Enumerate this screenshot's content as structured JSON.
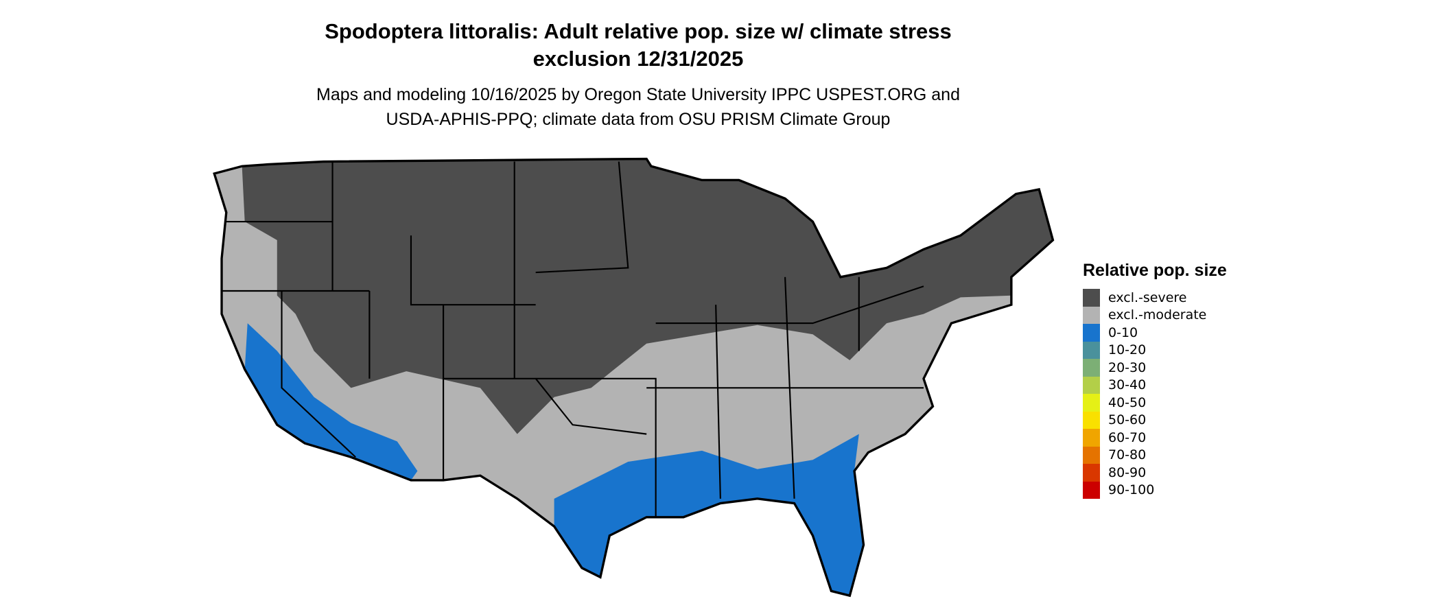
{
  "title_line1": "Spodoptera littoralis: Adult relative pop. size w/ climate stress",
  "title_line2": "exclusion 12/31/2025",
  "subtitle_line1": "Maps and modeling 10/16/2025 by Oregon State University IPPC USPEST.ORG and",
  "subtitle_line2": "USDA-APHIS-PPQ; climate data from OSU PRISM Climate Group",
  "legend": {
    "title": "Relative pop. size",
    "items": [
      {
        "label": "excl.-severe",
        "color": "#4d4d4d"
      },
      {
        "label": "excl.-moderate",
        "color": "#b3b3b3"
      },
      {
        "label": "0-10",
        "color": "#1874cd"
      },
      {
        "label": "10-20",
        "color": "#4a919c"
      },
      {
        "label": "20-30",
        "color": "#7caf75"
      },
      {
        "label": "30-40",
        "color": "#b3cf48"
      },
      {
        "label": "40-50",
        "color": "#e5f016"
      },
      {
        "label": "50-60",
        "color": "#f9e000"
      },
      {
        "label": "60-70",
        "color": "#f0a500"
      },
      {
        "label": "70-80",
        "color": "#e57300"
      },
      {
        "label": "80-90",
        "color": "#d93700"
      },
      {
        "label": "90-100",
        "color": "#cc0000"
      }
    ]
  }
}
